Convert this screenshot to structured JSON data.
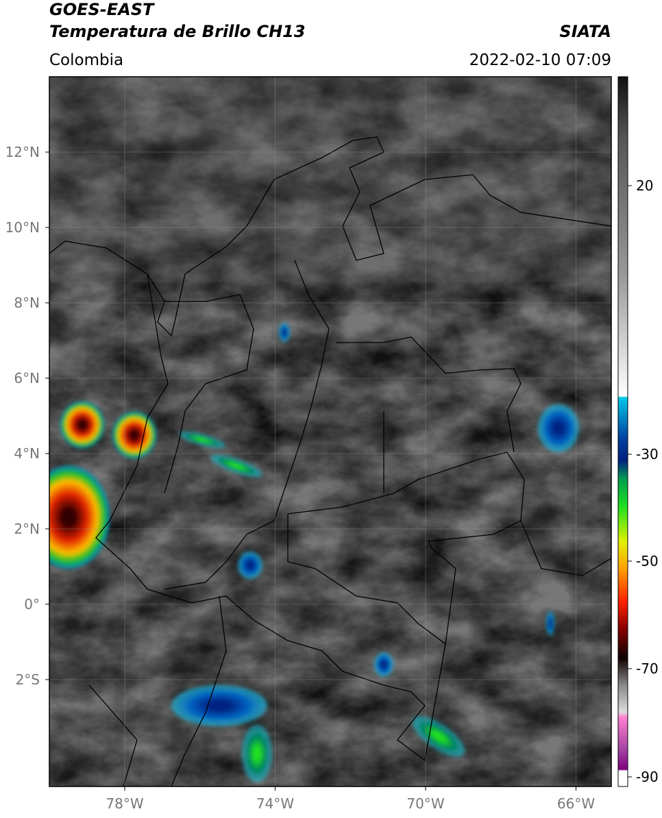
{
  "header": {
    "source": "GOES-EAST",
    "product": "Temperatura de Brillo CH13",
    "agency": "SIATA",
    "region": "Colombia",
    "datetime": "2022-02-10 07:09"
  },
  "map": {
    "lat_labels": [
      "12°N",
      "10°N",
      "8°N",
      "6°N",
      "4°N",
      "2°N",
      "0°",
      "2°S"
    ],
    "lon_labels": [
      "78°W",
      "74°W",
      "70°W",
      "66°W"
    ]
  },
  "colorbar": {
    "ticks": [
      20,
      -30,
      -50,
      -70,
      -90
    ]
  }
}
